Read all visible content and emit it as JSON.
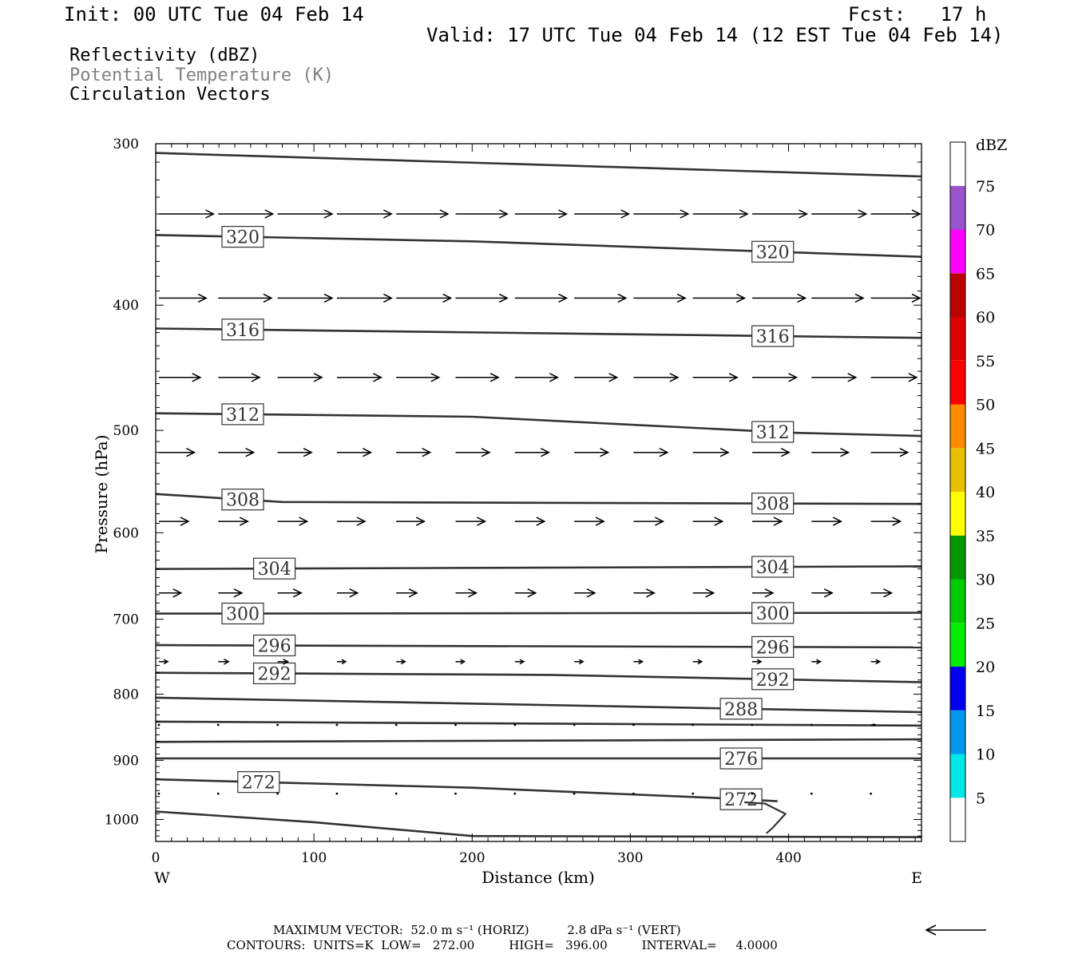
{
  "header": {
    "init": "Init: 00 UTC Tue 04 Feb 14",
    "fcst": "Fcst:   17 h",
    "valid": "Valid: 17 UTC Tue 04 Feb 14 (12 EST Tue 04 Feb 14)"
  },
  "fields": [
    {
      "label": "Reflectivity (dBZ)",
      "color": "#000000"
    },
    {
      "label": "Potential Temperature (K)",
      "color": "#808080"
    },
    {
      "label": "Circulation Vectors",
      "color": "#000000"
    }
  ],
  "chart_data": {
    "type": "cross-section",
    "ylabel": "Pressure (hPa)",
    "xlabel": "Distance (km)",
    "x_end_labels": {
      "left": "W",
      "right": "E"
    },
    "xlim": [
      0,
      484
    ],
    "ylim": [
      1040,
      300
    ],
    "y_log": true,
    "x_ticks": [
      0,
      100,
      200,
      300,
      400
    ],
    "y_ticks": [
      300,
      400,
      500,
      600,
      700,
      800,
      900,
      1000
    ],
    "theta_contours": [
      {
        "value": "",
        "points": [
          [
            0,
            305
          ],
          [
            484,
            318
          ]
        ]
      },
      {
        "value": "320",
        "points": [
          [
            0,
            353
          ],
          [
            200,
            357
          ],
          [
            484,
            367
          ]
        ],
        "labels_at": [
          55,
          390
        ]
      },
      {
        "value": "316",
        "points": [
          [
            0,
            417
          ],
          [
            484,
            424
          ]
        ],
        "labels_at": [
          55,
          390
        ]
      },
      {
        "value": "312",
        "points": [
          [
            0,
            485
          ],
          [
            200,
            488
          ],
          [
            400,
            502
          ],
          [
            484,
            505
          ]
        ],
        "labels_at": [
          55,
          390
        ]
      },
      {
        "value": "308",
        "points": [
          [
            0,
            560
          ],
          [
            80,
            568
          ],
          [
            484,
            570
          ]
        ],
        "labels_at": [
          55,
          390
        ]
      },
      {
        "value": "304",
        "points": [
          [
            0,
            640
          ],
          [
            484,
            637
          ]
        ],
        "labels_at": [
          75,
          390
        ]
      },
      {
        "value": "300",
        "points": [
          [
            0,
            693
          ],
          [
            484,
            692
          ]
        ],
        "labels_at": [
          55,
          390
        ]
      },
      {
        "value": "296",
        "points": [
          [
            0,
            733
          ],
          [
            484,
            736
          ]
        ],
        "labels_at": [
          75,
          390
        ]
      },
      {
        "value": "292",
        "points": [
          [
            0,
            770
          ],
          [
            250,
            773
          ],
          [
            484,
            783
          ]
        ],
        "labels_at": [
          75,
          390
        ]
      },
      {
        "value": "288",
        "points": [
          [
            0,
            805
          ],
          [
            484,
            826
          ]
        ],
        "labels_at": [
          370
        ]
      },
      {
        "value": "",
        "points": [
          [
            0,
            840
          ],
          [
            484,
            846
          ]
        ]
      },
      {
        "value": "",
        "points": [
          [
            0,
            871
          ],
          [
            484,
            867
          ]
        ]
      },
      {
        "value": "276",
        "points": [
          [
            0,
            897
          ],
          [
            484,
            897
          ]
        ],
        "labels_at": [
          370
        ]
      },
      {
        "value": "272",
        "points": [
          [
            0,
            931
          ],
          [
            200,
            945
          ],
          [
            350,
            962
          ],
          [
            393,
            968
          ]
        ],
        "labels_at": [
          65,
          370
        ]
      },
      {
        "value": "",
        "points": [
          [
            0,
            986
          ],
          [
            100,
            1005
          ],
          [
            200,
            1030
          ],
          [
            484,
            1032
          ]
        ]
      }
    ],
    "curl_272": [
      [
        372,
        970
      ],
      [
        385,
        972
      ],
      [
        398,
        990
      ],
      [
        390,
        1015
      ],
      [
        386,
        1025
      ]
    ],
    "vectors": [
      {
        "p": 340,
        "u": [
          37,
          37,
          37,
          37,
          35,
          35,
          35,
          37,
          37,
          37,
          37,
          37,
          37,
          37
        ]
      },
      {
        "p": 395,
        "u": [
          32,
          36,
          37,
          37,
          37,
          35,
          35,
          35,
          35,
          35,
          36,
          35,
          35,
          35
        ]
      },
      {
        "p": 455,
        "u": [
          28,
          28,
          30,
          30,
          29,
          29,
          29,
          29,
          30,
          30,
          30,
          30,
          31,
          31
        ]
      },
      {
        "p": 520,
        "u": [
          24,
          24,
          23,
          23,
          23,
          23,
          23,
          23,
          23,
          24,
          25,
          25,
          25,
          25
        ]
      },
      {
        "p": 588,
        "u": [
          20,
          20,
          20,
          19,
          19,
          20,
          20,
          20,
          20,
          20,
          20,
          20,
          20,
          20
        ]
      },
      {
        "p": 668,
        "u": [
          15,
          16,
          16,
          14,
          14,
          14,
          14,
          14,
          14,
          14,
          14,
          14,
          14,
          14
        ]
      },
      {
        "p": 755,
        "u": [
          6,
          7,
          7,
          6,
          6,
          6,
          6,
          6,
          6,
          6,
          6,
          6,
          6,
          6
        ]
      },
      {
        "p": 845,
        "u": [
          0,
          0,
          0,
          0,
          0,
          0,
          0,
          0,
          0,
          0,
          0,
          0,
          3,
          3
        ]
      },
      {
        "p": 955,
        "u": [
          0,
          0,
          0,
          0,
          0,
          0,
          0,
          0,
          0,
          0,
          0,
          0,
          0,
          0
        ]
      }
    ],
    "colorbar": {
      "title": "dBZ",
      "levels": [
        "5",
        "10",
        "15",
        "20",
        "25",
        "30",
        "35",
        "40",
        "45",
        "50",
        "55",
        "60",
        "65",
        "70",
        "75"
      ],
      "colors": [
        "#ffffff",
        "#00e8e8",
        "#0099ee",
        "#0000ee",
        "#00ee00",
        "#00cc00",
        "#009900",
        "#ffff00",
        "#e8c000",
        "#ff8c00",
        "#ff0000",
        "#dd0000",
        "#bb0000",
        "#ff00ff",
        "#9955cc",
        "#ffffff"
      ]
    }
  },
  "footer": {
    "max_vector": "MAXIMUM VECTOR:  52.0 m s⁻¹ (HORIZ)          2.8 dPa s⁻¹ (VERT)",
    "contours": "CONTOURS:  UNITS=K  LOW=   272.00         HIGH=   396.00         INTERVAL=     4.0000"
  }
}
